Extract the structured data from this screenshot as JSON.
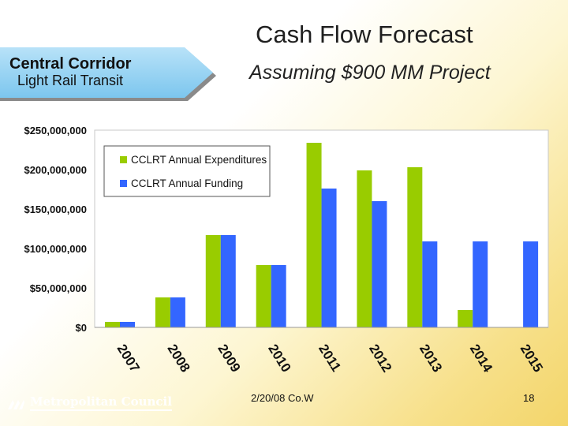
{
  "header": {
    "title": "Cash Flow Forecast",
    "subtitle": "Assuming $900 MM Project"
  },
  "banner": {
    "line1": "Central Corridor",
    "line2": "Light Rail Transit"
  },
  "footer": {
    "date": "2/20/08 Co.W",
    "page": "18",
    "logo_text": "Metropolitan Council"
  },
  "chart_data": {
    "type": "bar",
    "categories": [
      "2007",
      "2008",
      "2009",
      "2010",
      "2011",
      "2012",
      "2013",
      "2014",
      "2015"
    ],
    "series": [
      {
        "name": "CCLRT Annual Expenditures",
        "color": "#99cc00",
        "values": [
          7000000,
          38000000,
          117000000,
          79000000,
          234000000,
          199000000,
          203000000,
          22000000,
          0
        ]
      },
      {
        "name": "CCLRT Annual Funding",
        "color": "#3366ff",
        "values": [
          7000000,
          38000000,
          117000000,
          79000000,
          176000000,
          160000000,
          109000000,
          109000000,
          109000000
        ]
      }
    ],
    "yticks": [
      "$250,000,000",
      "$200,000,000",
      "$150,000,000",
      "$100,000,000",
      "$50,000,000",
      "$0"
    ],
    "ylim": [
      0,
      250000000
    ],
    "legend_position": "top-left",
    "title": "",
    "xlabel": "",
    "ylabel": ""
  }
}
